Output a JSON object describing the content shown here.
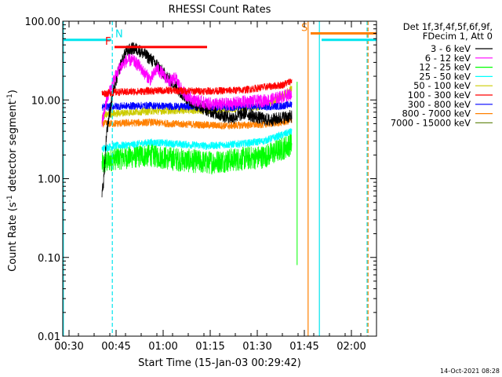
{
  "chart_data": {
    "type": "line",
    "title": "RHESSI Count Rates",
    "xlabel": "Start Time (15-Jan-03 00:29:42)",
    "ylabel_main": "Count Rate (s",
    "ylabel_exp1": "-1",
    "ylabel_mid": " detector segment",
    "ylabel_exp2": "-1",
    "ylabel_end": ")",
    "yscale": "log",
    "ylim": [
      0.01,
      100
    ],
    "xlim_minutes": [
      -2,
      98
    ],
    "x_ticks": [
      {
        "label": "00:30",
        "t": 0
      },
      {
        "label": "00:45",
        "t": 15
      },
      {
        "label": "01:00",
        "t": 30
      },
      {
        "label": "01:15",
        "t": 45
      },
      {
        "label": "01:30",
        "t": 60
      },
      {
        "label": "01:45",
        "t": 75
      },
      {
        "label": "02:00",
        "t": 90
      }
    ],
    "y_ticks": [
      {
        "label": "100.00",
        "v": 100
      },
      {
        "label": "10.00",
        "v": 10
      },
      {
        "label": "1.00",
        "v": 1
      },
      {
        "label": "0.10",
        "v": 0.1
      },
      {
        "label": "0.01",
        "v": 0.01
      }
    ],
    "legend_header": [
      "Det 1f,3f,4f,5f,6f,9f,",
      "FDecim 1, Att 0"
    ],
    "series": [
      {
        "name": "3 - 6 keV",
        "color": "#000000",
        "points": [
          [
            10.5,
            0.7
          ],
          [
            11,
            0.9
          ],
          [
            12,
            4
          ],
          [
            13,
            7
          ],
          [
            14,
            12
          ],
          [
            16,
            25
          ],
          [
            18,
            40
          ],
          [
            20,
            45
          ],
          [
            22,
            44
          ],
          [
            24,
            38
          ],
          [
            26,
            33
          ],
          [
            28,
            28
          ],
          [
            30,
            22
          ],
          [
            32,
            18
          ],
          [
            34,
            15
          ],
          [
            36,
            12
          ],
          [
            38,
            10
          ],
          [
            40,
            9
          ],
          [
            42,
            8.2
          ],
          [
            44,
            7.5
          ],
          [
            48,
            6.5
          ],
          [
            52,
            5.9
          ],
          [
            56,
            6.8
          ],
          [
            60,
            6
          ],
          [
            64,
            5.5
          ],
          [
            68,
            6
          ],
          [
            71,
            6.2
          ]
        ]
      },
      {
        "name": "6 - 12 keV",
        "color": "#ff00ff",
        "points": [
          [
            10.5,
            5
          ],
          [
            12,
            10
          ],
          [
            14,
            17
          ],
          [
            16,
            25
          ],
          [
            18,
            31
          ],
          [
            20,
            32
          ],
          [
            22,
            28
          ],
          [
            24,
            22
          ],
          [
            26,
            18
          ],
          [
            28,
            25
          ],
          [
            30,
            21
          ],
          [
            32,
            17
          ],
          [
            34,
            19
          ],
          [
            36,
            13
          ],
          [
            38,
            11
          ],
          [
            40,
            10
          ],
          [
            42,
            9.5
          ],
          [
            44,
            9
          ],
          [
            48,
            8.8
          ],
          [
            52,
            9
          ],
          [
            56,
            9.5
          ],
          [
            60,
            9.6
          ],
          [
            64,
            10
          ],
          [
            68,
            11
          ],
          [
            71,
            12
          ]
        ]
      },
      {
        "name": "12 - 25 keV",
        "color": "#00ff00",
        "points": [
          [
            10.5,
            1.5
          ],
          [
            14,
            1.8
          ],
          [
            20,
            1.9
          ],
          [
            26,
            2.0
          ],
          [
            32,
            1.8
          ],
          [
            38,
            1.7
          ],
          [
            44,
            1.6
          ],
          [
            50,
            1.7
          ],
          [
            56,
            1.8
          ],
          [
            62,
            1.9
          ],
          [
            68,
            2.4
          ],
          [
            71,
            2.8
          ]
        ]
      },
      {
        "name": "25 - 50 keV",
        "color": "#00ffff",
        "points": [
          [
            10.5,
            2.4
          ],
          [
            14,
            2.6
          ],
          [
            20,
            2.7
          ],
          [
            26,
            2.9
          ],
          [
            32,
            2.8
          ],
          [
            38,
            2.7
          ],
          [
            44,
            2.6
          ],
          [
            50,
            2.7
          ],
          [
            56,
            2.8
          ],
          [
            62,
            3.0
          ],
          [
            68,
            3.6
          ],
          [
            71,
            4.0
          ]
        ]
      },
      {
        "name": "50 - 100 keV",
        "color": "#cccc00",
        "points": [
          [
            10.5,
            6.3
          ],
          [
            14,
            6.7
          ],
          [
            20,
            7.0
          ],
          [
            26,
            7.2
          ],
          [
            32,
            7.3
          ],
          [
            38,
            7.4
          ],
          [
            44,
            7.4
          ],
          [
            50,
            7.6
          ],
          [
            56,
            7.8
          ],
          [
            60,
            8.1
          ],
          [
            64,
            9.0
          ],
          [
            68,
            11.2
          ],
          [
            71,
            14.0
          ]
        ]
      },
      {
        "name": "100 - 300 keV",
        "color": "#ff0000",
        "points": [
          [
            10.5,
            12
          ],
          [
            14,
            12.5
          ],
          [
            20,
            12.7
          ],
          [
            26,
            13
          ],
          [
            32,
            13.2
          ],
          [
            38,
            13
          ],
          [
            44,
            13
          ],
          [
            50,
            13.1
          ],
          [
            56,
            13.4
          ],
          [
            62,
            14.5
          ],
          [
            68,
            15.5
          ],
          [
            71,
            17.5
          ]
        ]
      },
      {
        "name": "300 - 800 keV",
        "color": "#0000ff",
        "points": [
          [
            10.5,
            8
          ],
          [
            14,
            8.3
          ],
          [
            20,
            8.4
          ],
          [
            26,
            8.5
          ],
          [
            32,
            8.3
          ],
          [
            38,
            8.2
          ],
          [
            44,
            8.1
          ],
          [
            50,
            8.0
          ],
          [
            56,
            8.1
          ],
          [
            62,
            8.2
          ],
          [
            68,
            8.4
          ],
          [
            71,
            8.8
          ]
        ]
      },
      {
        "name": "800 - 7000 keV",
        "color": "#ff8000",
        "points": [
          [
            10.5,
            5.0
          ],
          [
            14,
            5.0
          ],
          [
            20,
            5.1
          ],
          [
            26,
            5.2
          ],
          [
            32,
            5.0
          ],
          [
            38,
            4.9
          ],
          [
            44,
            4.8
          ],
          [
            50,
            4.7
          ],
          [
            56,
            4.8
          ],
          [
            62,
            4.9
          ],
          [
            68,
            5.2
          ],
          [
            71,
            5.5
          ]
        ]
      },
      {
        "name": "7000 - 15000 keV",
        "color": "#6b8e23",
        "points": []
      }
    ],
    "flags": [
      {
        "label": "N",
        "color": "#00e5ee",
        "t_start": -2,
        "t_end": 13.5,
        "value": 58
      },
      {
        "label": "F",
        "color": "#ff0000",
        "t_start": 14.5,
        "t_end": 44,
        "value": 47
      },
      {
        "label": "S",
        "color": "#ff8000",
        "t_start": 77,
        "t_end": 98,
        "value": 70
      },
      {
        "label": "",
        "color": "#00e5ee",
        "t_start": 80.5,
        "t_end": 98,
        "value": 58
      }
    ],
    "vertical_lines": [
      {
        "t": -1.8,
        "color": "#00e5ee",
        "style": "solid"
      },
      {
        "t": 13.8,
        "color": "#00e5ee",
        "style": "dashed"
      },
      {
        "t": 76.2,
        "color": "#ff8000",
        "style": "solid"
      },
      {
        "t": 79.8,
        "color": "#00e5ee",
        "style": "solid"
      },
      {
        "t": 95.0,
        "color": "#00e5ee",
        "style": "dashed"
      },
      {
        "t": 95.3,
        "color": "#ff8000",
        "style": "dashed"
      }
    ],
    "end_spike": {
      "t": 72.7,
      "low": 0.08,
      "high": 17,
      "color": "#00ff00"
    },
    "timestamp": "14-Oct-2021 08:28"
  }
}
